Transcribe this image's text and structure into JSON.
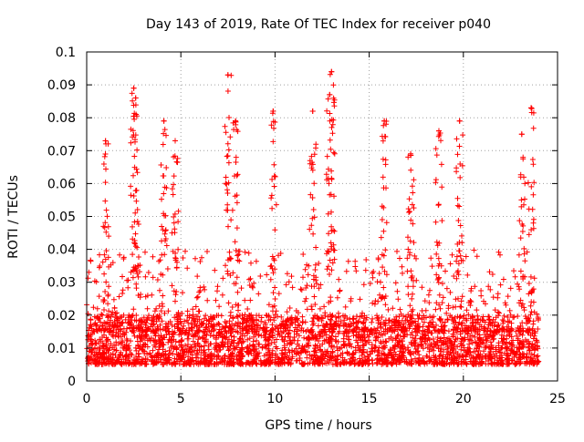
{
  "chart_data": {
    "type": "scatter",
    "title": "Day 143 of 2019, Rate Of TEC Index for receiver p040",
    "xlabel": "GPS time / hours",
    "ylabel": "ROTI / TECUs",
    "xlim": [
      0,
      25
    ],
    "ylim": [
      0,
      0.1
    ],
    "xticks": [
      0,
      5,
      10,
      15,
      20,
      25
    ],
    "xtick_labels": [
      "0",
      "5",
      "10",
      "15",
      "20",
      "25"
    ],
    "yticks": [
      0,
      0.01,
      0.02,
      0.03,
      0.04,
      0.05,
      0.06,
      0.07,
      0.08,
      0.09,
      0.1
    ],
    "ytick_labels": [
      "0",
      "0.01",
      "0.02",
      "0.03",
      "0.04",
      "0.05",
      "0.06",
      "0.07",
      "0.08",
      "0.09",
      "0.1"
    ],
    "grid": true,
    "marker": "+",
    "color": "#ff0000",
    "series": [
      {
        "name": "ROTI",
        "x_range": [
          0,
          24
        ],
        "baseline_band": [
          0.005,
          0.02
        ],
        "notable_points": [
          {
            "x": 2.5,
            "y": 0.089
          },
          {
            "x": 2.6,
            "y": 0.086
          },
          {
            "x": 4.1,
            "y": 0.079
          },
          {
            "x": 7.5,
            "y": 0.093
          },
          {
            "x": 7.9,
            "y": 0.079
          },
          {
            "x": 9.9,
            "y": 0.082
          },
          {
            "x": 12.0,
            "y": 0.082
          },
          {
            "x": 13.0,
            "y": 0.094
          },
          {
            "x": 12.9,
            "y": 0.087
          },
          {
            "x": 15.8,
            "y": 0.079
          },
          {
            "x": 18.7,
            "y": 0.076
          },
          {
            "x": 19.8,
            "y": 0.079
          },
          {
            "x": 23.6,
            "y": 0.083
          },
          {
            "x": 23.1,
            "y": 0.075
          },
          {
            "x": 1.0,
            "y": 0.073
          },
          {
            "x": 4.7,
            "y": 0.073
          },
          {
            "x": 17.2,
            "y": 0.069
          }
        ]
      }
    ]
  }
}
